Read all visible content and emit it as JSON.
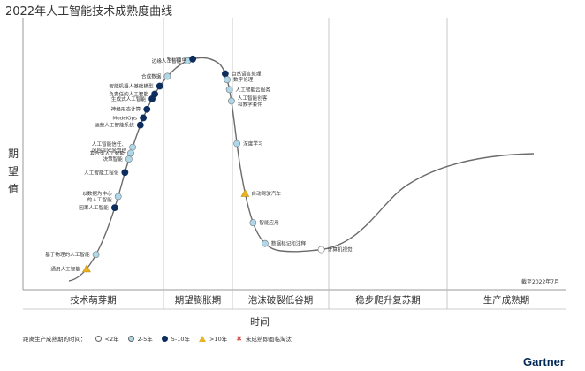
{
  "chart_data": {
    "type": "line",
    "title": "2022年人工智能技术成熟度曲线",
    "xlabel": "时间",
    "ylabel": "期望值",
    "as_of": "截至2022年7月",
    "phases": [
      "技术萌芽期",
      "期望膨胀期",
      "泡沫破裂低谷期",
      "稳步爬升复苏期",
      "生产成熟期"
    ],
    "legend": {
      "label": "距离生产成熟期的时间：",
      "items": [
        {
          "key": "lt2",
          "label": "<2年",
          "color": "#ffffff"
        },
        {
          "key": "y2to5",
          "label": "2-5年",
          "color": "#aed8ea"
        },
        {
          "key": "y5to10",
          "label": "5-10年",
          "color": "#0d2d5e"
        },
        {
          "key": "gt10",
          "label": ">10年",
          "color": "#e8b323"
        },
        {
          "key": "obsolete",
          "label": "未成熟即面临淘汰",
          "color": "#d9534f"
        }
      ]
    },
    "points": [
      {
        "label": "通用人工智能",
        "t": 0.028,
        "cat": "gt10"
      },
      {
        "label": "基于物理的人工智能",
        "t": 0.05,
        "cat": "y2to5"
      },
      {
        "label": "因果人工智能",
        "t": 0.115,
        "cat": "y5to10"
      },
      {
        "label": "以数据为中心的人工智能",
        "t": 0.13,
        "cat": "y2to5"
      },
      {
        "label": "人工智能工程化",
        "t": 0.162,
        "cat": "y5to10"
      },
      {
        "label": "决策智能",
        "t": 0.18,
        "cat": "y2to5"
      },
      {
        "label": "复合型人工智能",
        "t": 0.188,
        "cat": "y2to5"
      },
      {
        "label": "人工智能信任、风险和安全管理",
        "t": 0.196,
        "cat": "y2to5"
      },
      {
        "label": "运营人工智能系统",
        "t": 0.226,
        "cat": "y5to10"
      },
      {
        "label": "ModelOps",
        "t": 0.236,
        "cat": "y5to10"
      },
      {
        "label": "神经形态计算",
        "t": 0.248,
        "cat": "y5to10"
      },
      {
        "label": "生成式人工智能",
        "t": 0.263,
        "cat": "y5to10"
      },
      {
        "label": "负责任的人工智能",
        "t": 0.27,
        "cat": "y5to10"
      },
      {
        "label": "智能机器人基础模型",
        "t": 0.282,
        "cat": "y5to10"
      },
      {
        "label": "合成数据",
        "t": 0.298,
        "cat": "y2to5"
      },
      {
        "label": "边缘人工智能",
        "t": 0.331,
        "cat": "y2to5"
      },
      {
        "label": "知识图谱",
        "t": 0.338,
        "cat": "y5to10"
      },
      {
        "label": "自然语言处理",
        "t": 0.389,
        "cat": "y5to10"
      },
      {
        "label": "数字伦理",
        "t": 0.397,
        "cat": "y2to5"
      },
      {
        "label": "人工智能云服务",
        "t": 0.41,
        "cat": "y2to5"
      },
      {
        "label": "人工智能创客和教学套件",
        "t": 0.425,
        "cat": "y2to5"
      },
      {
        "label": "深度学习",
        "t": 0.48,
        "cat": "y2to5"
      },
      {
        "label": "自动驾驶汽车",
        "t": 0.545,
        "cat": "gt10"
      },
      {
        "label": "智能应用",
        "t": 0.584,
        "cat": "y2to5"
      },
      {
        "label": "数据标记和注释",
        "t": 0.615,
        "cat": "y2to5"
      },
      {
        "label": "计算机视觉",
        "t": 0.69,
        "cat": "lt2"
      }
    ]
  },
  "brand": "Gartner"
}
